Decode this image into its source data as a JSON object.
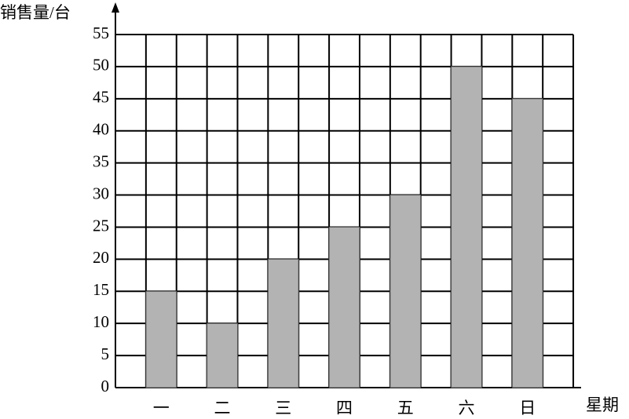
{
  "chart_data": {
    "type": "bar",
    "y_label": "销售量/台",
    "x_label": "星期",
    "categories": [
      "一",
      "二",
      "三",
      "四",
      "五",
      "六",
      "日"
    ],
    "values": [
      15,
      10,
      20,
      25,
      30,
      50,
      45
    ],
    "color": "#b3b3b3",
    "ylim": [
      0,
      55
    ],
    "yticks": [
      0,
      5,
      10,
      15,
      20,
      25,
      30,
      35,
      40,
      45,
      50,
      55
    ],
    "grid": true
  }
}
